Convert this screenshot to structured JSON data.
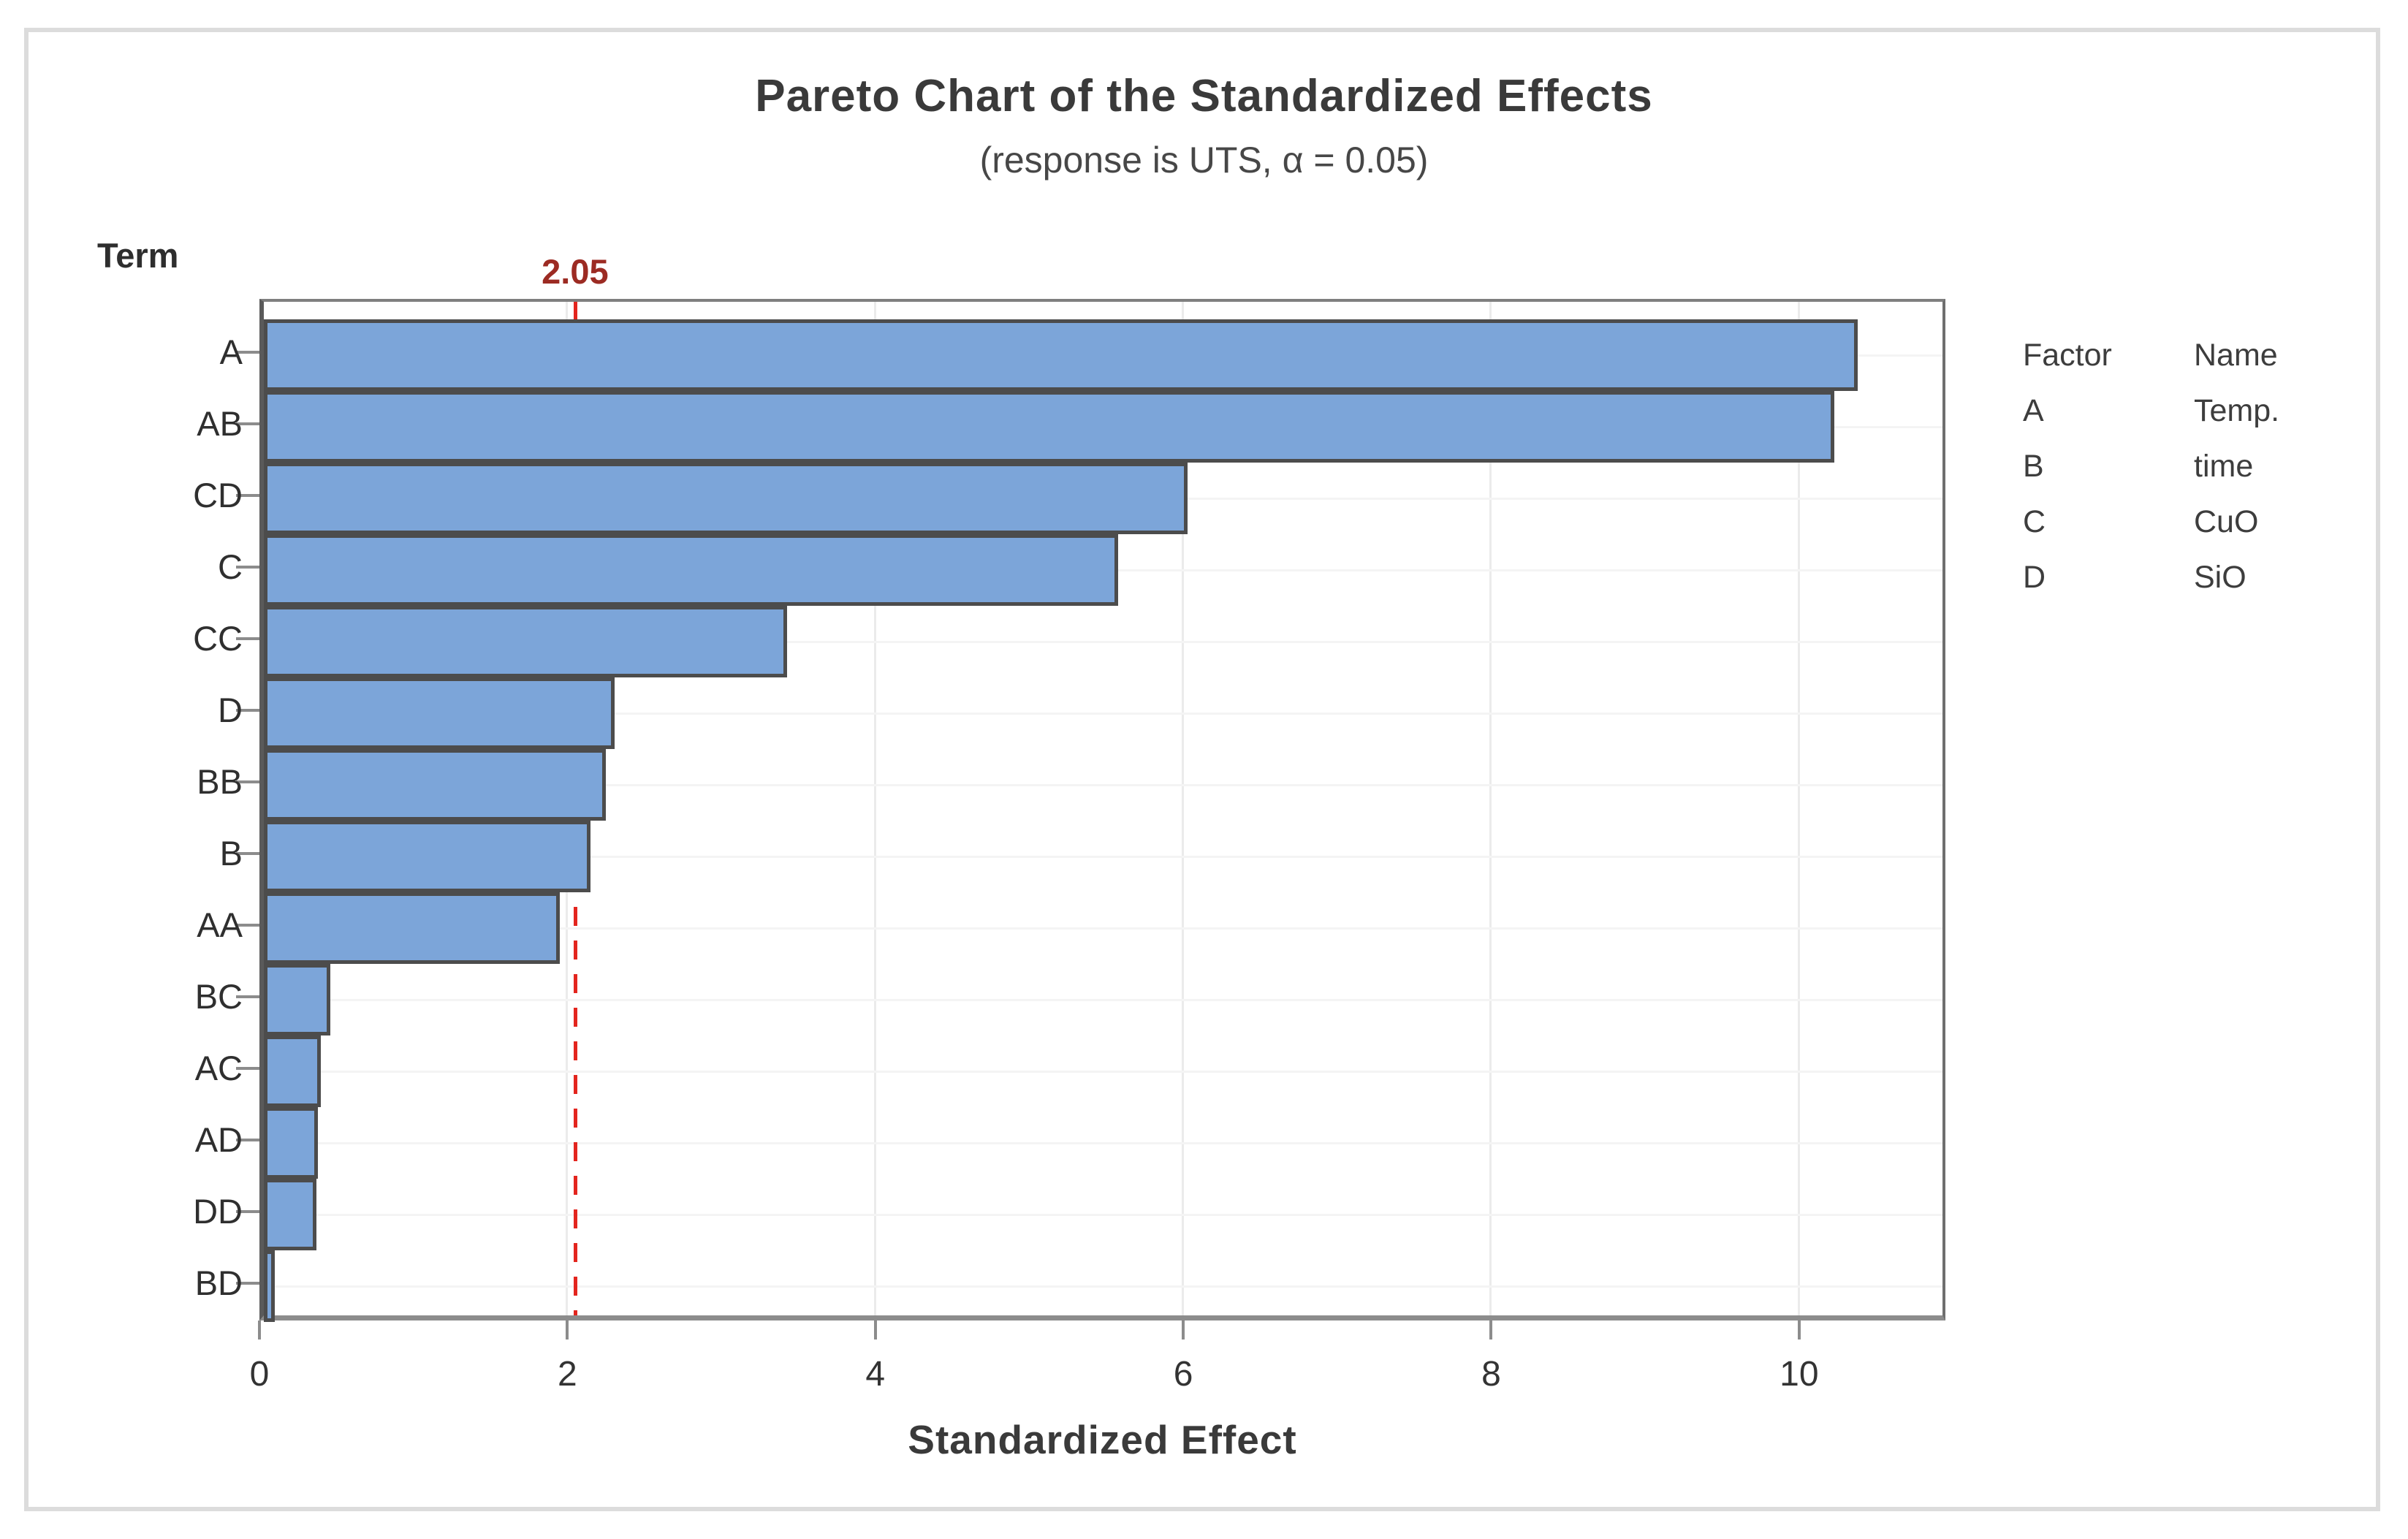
{
  "title": "Pareto Chart of the Standardized Effects",
  "subtitle": "(response is UTS, α = 0.05)",
  "chart_data": {
    "type": "bar",
    "orientation": "horizontal",
    "title": "Pareto Chart of the Standardized Effects",
    "subtitle": "(response is UTS, α = 0.05)",
    "y_axis_title": "Term",
    "xlabel": "Standardized Effect",
    "categories": [
      "A",
      "AB",
      "CD",
      "C",
      "CC",
      "D",
      "BB",
      "B",
      "AA",
      "BC",
      "AC",
      "AD",
      "DD",
      "BD"
    ],
    "values": [
      10.35,
      10.2,
      6.0,
      5.55,
      3.4,
      2.28,
      2.22,
      2.12,
      1.92,
      0.43,
      0.37,
      0.35,
      0.34,
      0.07
    ],
    "x_ticks": [
      0,
      2,
      4,
      6,
      8,
      10
    ],
    "xlim": [
      0,
      10.95
    ],
    "grid": true,
    "legend_position": "right",
    "reference_line": {
      "value": 2.05,
      "label": "2.05"
    },
    "colors": {
      "bar_fill": "#7CA5D9",
      "bar_border": "#4C4C4C",
      "reference_line": "#E3251E",
      "reference_label": "#9C2B23",
      "gridline": "#EBEBEB",
      "axis": "#8C8C8C",
      "text": "#3A3A3A"
    }
  },
  "legend": {
    "headers": {
      "factor": "Factor",
      "name": "Name"
    },
    "rows": [
      {
        "factor": "A",
        "name": "Temp."
      },
      {
        "factor": "B",
        "name": "time"
      },
      {
        "factor": "C",
        "name": "CuO"
      },
      {
        "factor": "D",
        "name": "SiO"
      }
    ]
  }
}
